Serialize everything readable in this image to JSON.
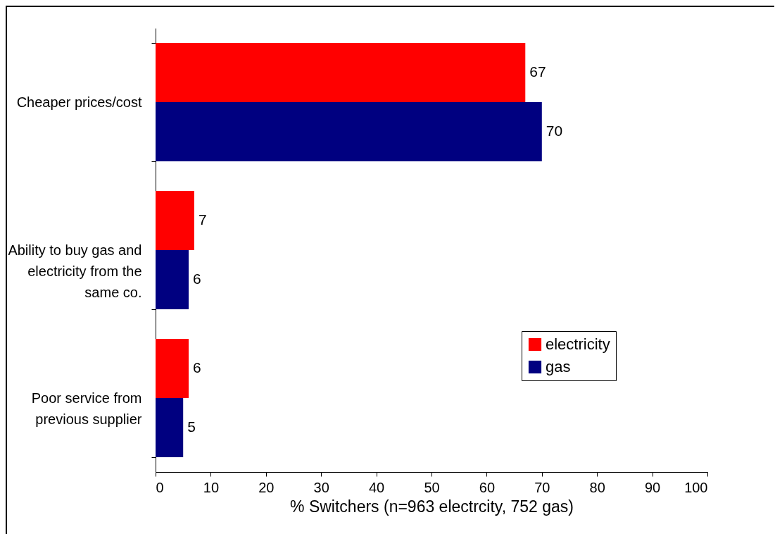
{
  "chart_data": {
    "type": "bar",
    "orientation": "horizontal",
    "xlabel": "% Switchers (n=963 electrcity, 752 gas)",
    "categories": [
      "Cheaper prices/cost",
      "Ability to buy gas and electricity from the same co.",
      "Poor service from previous supplier"
    ],
    "series": [
      {
        "name": "electricity",
        "color": "#ff0000",
        "values": [
          67,
          7,
          6
        ]
      },
      {
        "name": "gas",
        "color": "#000080",
        "values": [
          70,
          6,
          5
        ]
      }
    ],
    "xlim": [
      0,
      100
    ],
    "xticks": [
      0,
      10,
      20,
      30,
      40,
      50,
      60,
      70,
      80,
      90,
      100
    ],
    "grid": false,
    "legend": "bottom right",
    "data_labels": true
  }
}
